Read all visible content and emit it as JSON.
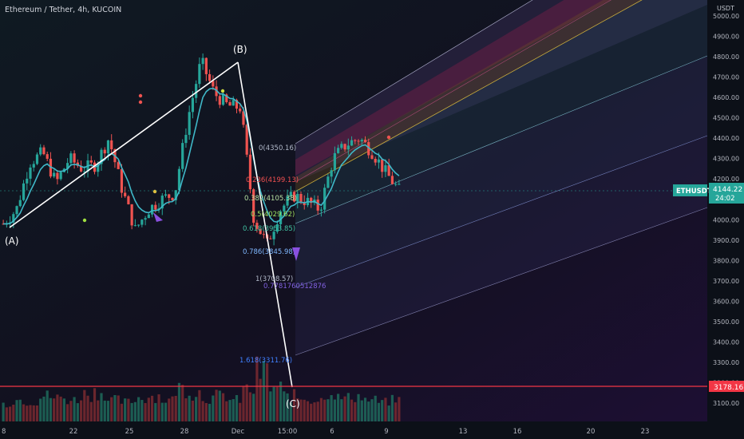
{
  "header": {
    "title": "Ethereum / Tether, 4h, KUCOIN"
  },
  "price_axis": {
    "currency": "USDT",
    "ticks": [
      "5000.00",
      "4900.00",
      "4800.00",
      "4700.00",
      "4600.00",
      "4500.00",
      "4400.00",
      "4300.00",
      "4200.00",
      "4100.00",
      "4000.00",
      "3900.00",
      "3800.00",
      "3700.00",
      "3600.00",
      "3500.00",
      "3400.00",
      "3300.00",
      "3200.00",
      "3100.00"
    ],
    "last_price": {
      "symbol": "ETHUSDT",
      "price": "4144.22",
      "countdown": "24:02"
    },
    "line_price": "3178.16"
  },
  "time_axis": {
    "ticks": [
      "8",
      "22",
      "25",
      "28",
      "Dec",
      "15:00",
      "6",
      "9",
      "13",
      "16",
      "20",
      "23"
    ]
  },
  "wave_labels": {
    "a": "(A)",
    "b": "(B)",
    "c": "(C)"
  },
  "fib_levels": [
    {
      "label": "0(4350.16)",
      "color": "#b0b8c8"
    },
    {
      "label": "0.236(4199.13)",
      "color": "#f05050"
    },
    {
      "label": "0.382(4105.38)",
      "color": "#b6e0a0"
    },
    {
      "label": "0.5(4029.62)",
      "color": "#9be060"
    },
    {
      "label": "0.618(3953.85)",
      "color": "#40c0a0"
    },
    {
      "label": "0.786(3845.98)",
      "color": "#80b8ff"
    },
    {
      "label": "1(3708.57)",
      "color": "#b0b8c8"
    },
    {
      "label": "0.7781760512876",
      "color": "#8060e0"
    },
    {
      "label": "1.618(3311.76)",
      "color": "#4080ff"
    }
  ],
  "colors": {
    "up": "#26a69a",
    "down": "#ef5350",
    "ema": "#3fb8c8",
    "background": "#0c1018"
  },
  "chart_data": {
    "type": "candlestick",
    "symbol": "ETHUSDT",
    "ylim": [
      3050,
      5050
    ],
    "approx_close_path": [
      3980,
      4050,
      4280,
      4330,
      4180,
      4300,
      4250,
      4270,
      4400,
      4150,
      3950,
      4050,
      4100,
      4130,
      4500,
      4780,
      4620,
      4560,
      4550,
      4000,
      3880,
      4050,
      4120,
      4090,
      4050,
      4300,
      4370,
      4400,
      4330,
      4230,
      4144
    ],
    "last_price": 4144.22,
    "horizontal_line": 3178.16,
    "volume_relative": [
      0.2,
      0.3,
      0.25,
      0.4,
      0.35,
      0.3,
      0.45,
      0.5,
      0.3,
      0.25,
      0.35,
      0.4,
      0.3,
      0.6,
      0.5,
      0.35,
      0.4,
      0.3,
      0.55,
      1.0,
      0.6,
      0.4,
      0.35,
      0.3,
      0.5,
      0.35,
      0.4,
      0.3,
      0.25,
      0.3
    ]
  }
}
